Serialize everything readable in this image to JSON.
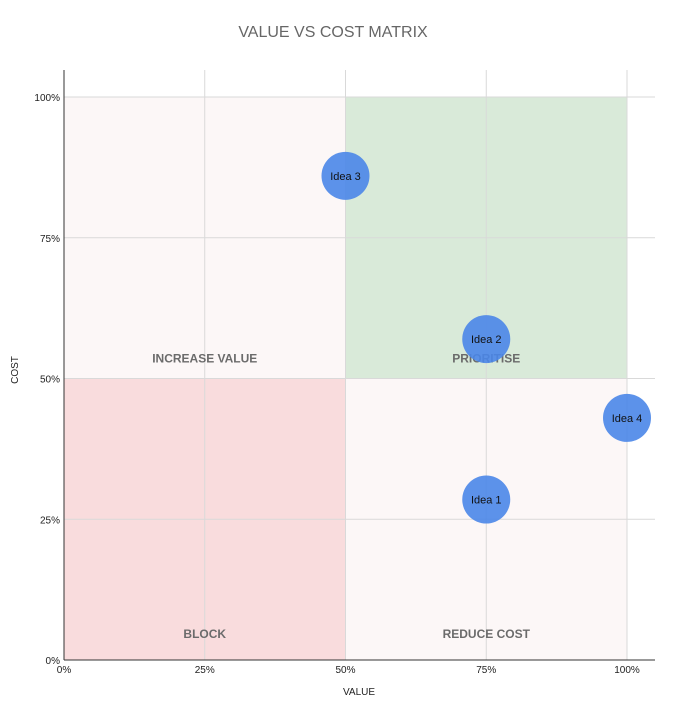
{
  "chart_data": {
    "type": "scatter",
    "title": "VALUE VS COST MATRIX",
    "xlabel": "VALUE",
    "ylabel": "COST",
    "xlim": [
      0,
      100
    ],
    "ylim": [
      0,
      100
    ],
    "x_ticks": [
      "0%",
      "25%",
      "50%",
      "75%",
      "100%"
    ],
    "y_ticks": [
      "0%",
      "25%",
      "50%",
      "75%",
      "100%"
    ],
    "grid": true,
    "quadrants": [
      {
        "label": "INCREASE VALUE",
        "x": [
          0,
          50
        ],
        "y": [
          50,
          100
        ],
        "color": "#fcf7f7"
      },
      {
        "label": "PRIORITISE",
        "x": [
          50,
          100
        ],
        "y": [
          50,
          100
        ],
        "color": "#d9ead9"
      },
      {
        "label": "BLOCK",
        "x": [
          0,
          50
        ],
        "y": [
          0,
          50
        ],
        "color": "#f9dcdd"
      },
      {
        "label": "REDUCE COST",
        "x": [
          50,
          100
        ],
        "y": [
          0,
          50
        ],
        "color": "#fcf7f7"
      }
    ],
    "points": [
      {
        "label": "Idea 1",
        "x": 75,
        "y": 28.5
      },
      {
        "label": "Idea 2",
        "x": 75,
        "y": 57
      },
      {
        "label": "Idea 3",
        "x": 50,
        "y": 86
      },
      {
        "label": "Idea 4",
        "x": 100,
        "y": 43
      }
    ],
    "point_color": "#4a86e8"
  }
}
